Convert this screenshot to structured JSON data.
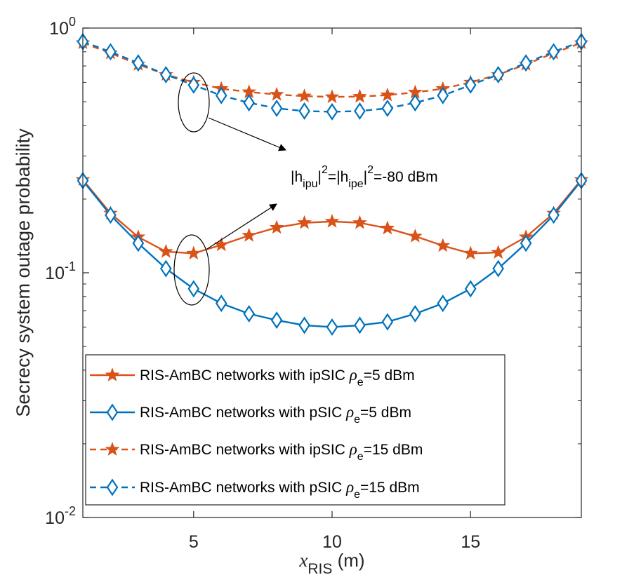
{
  "chart_data": {
    "type": "line",
    "y_scale": "log",
    "ylim": [
      0.01,
      1
    ],
    "xlim": [
      1,
      19
    ],
    "xlabel": {
      "symbol": "x",
      "subscript": "RIS",
      "unit": " (m)"
    },
    "ylabel": "Secrecy system outage probability",
    "x_ticks": [
      {
        "value": 5,
        "label": "5"
      },
      {
        "value": 10,
        "label": "10"
      },
      {
        "value": 15,
        "label": "15"
      }
    ],
    "y_ticks": [
      {
        "value": 1,
        "base": "10",
        "exp": "0"
      },
      {
        "value": 0.1,
        "base": "10",
        "exp": "-1"
      },
      {
        "value": 0.01,
        "base": "10",
        "exp": "-2"
      }
    ],
    "x": [
      1,
      2,
      3,
      4,
      5,
      6,
      7,
      8,
      9,
      10,
      11,
      12,
      13,
      14,
      15,
      16,
      17,
      18,
      19
    ],
    "series": [
      {
        "name": "ipsic-5dbm",
        "label_prefix": "RIS-AmBC networks with ipSIC ",
        "label_suffix": "=5 dBm",
        "color": "#D95319",
        "style": "solid",
        "marker": "star",
        "values": [
          0.24,
          0.175,
          0.14,
          0.122,
          0.12,
          0.13,
          0.142,
          0.153,
          0.16,
          0.162,
          0.16,
          0.152,
          0.141,
          0.129,
          0.12,
          0.121,
          0.14,
          0.175,
          0.24
        ]
      },
      {
        "name": "psic-5dbm",
        "label_prefix": "RIS-AmBC networks with pSIC ",
        "label_suffix": "=5 dBm",
        "color": "#0072BD",
        "style": "solid",
        "marker": "diamond",
        "values": [
          0.238,
          0.172,
          0.132,
          0.104,
          0.086,
          0.075,
          0.068,
          0.064,
          0.061,
          0.06,
          0.061,
          0.063,
          0.068,
          0.075,
          0.086,
          0.104,
          0.132,
          0.172,
          0.238
        ]
      },
      {
        "name": "ipsic-15dbm",
        "label_prefix": "RIS-AmBC networks with ipSIC ",
        "label_suffix": "=15 dBm",
        "color": "#D95319",
        "style": "dashed",
        "marker": "star",
        "values": [
          0.87,
          0.79,
          0.71,
          0.645,
          0.6,
          0.565,
          0.548,
          0.535,
          0.527,
          0.523,
          0.525,
          0.532,
          0.546,
          0.565,
          0.6,
          0.645,
          0.71,
          0.79,
          0.87
        ]
      },
      {
        "name": "psic-15dbm",
        "label_prefix": "RIS-AmBC networks with pSIC ",
        "label_suffix": "=15 dBm",
        "color": "#0072BD",
        "style": "dashed",
        "marker": "diamond",
        "values": [
          0.88,
          0.8,
          0.72,
          0.645,
          0.585,
          0.53,
          0.495,
          0.47,
          0.458,
          0.455,
          0.458,
          0.47,
          0.495,
          0.53,
          0.585,
          0.645,
          0.72,
          0.8,
          0.88
        ]
      }
    ],
    "legend_symbol": {
      "base": "ρ",
      "sub": "e"
    },
    "legend_position": "bottom-left",
    "annotation": {
      "parts": [
        {
          "t": "|h",
          "k": "n"
        },
        {
          "t": "ipu",
          "k": "sub"
        },
        {
          "t": "|",
          "k": "n"
        },
        {
          "t": "2",
          "k": "sup"
        },
        {
          "t": "=|h",
          "k": "n"
        },
        {
          "t": "ipe",
          "k": "sub"
        },
        {
          "t": "|",
          "k": "n"
        },
        {
          "t": "2",
          "k": "sup"
        },
        {
          "t": "=-80 dBm",
          "k": "n"
        }
      ],
      "ellipses_at_x": 5
    }
  }
}
